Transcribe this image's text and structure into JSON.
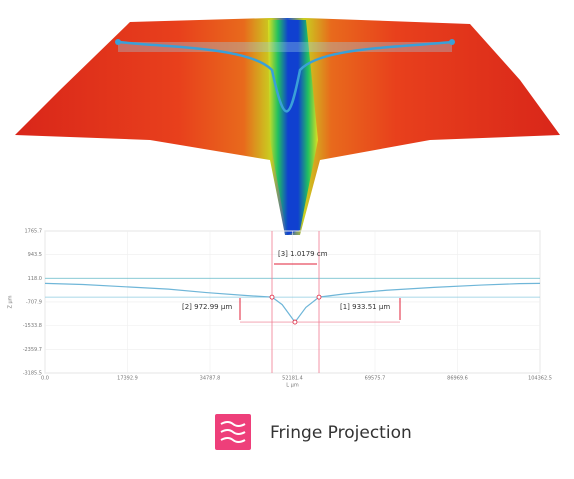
{
  "chart_data": {
    "type": "line",
    "x_label": "L μm",
    "y_label": "Z μm",
    "xlim": [
      0,
      104362.5
    ],
    "xticks": [
      {
        "value": 0,
        "label": "0.0"
      },
      17392.9,
      34787.8,
      52181.4,
      69575.7,
      86969.6,
      104362.5
    ],
    "ylim": [
      -3185.5,
      1765.7
    ],
    "yticks": [
      1765.7,
      943.5,
      {
        "value": 118,
        "label": "118.0"
      },
      -707.9,
      -1533.8,
      -2359.7,
      -3185.5
    ],
    "grid": true,
    "series": [
      {
        "color": "#6fb6d8",
        "x": [
          0,
          8000,
          17000,
          26000,
          34000,
          42000,
          47860,
          50000,
          52700,
          55000,
          57770,
          63000,
          72000,
          82000,
          92000,
          100000,
          104362.5
        ],
        "values": [
          -60,
          -100,
          -180,
          -260,
          -380,
          -480,
          -540,
          -800,
          -1410,
          -900,
          -540,
          -430,
          -300,
          -200,
          -120,
          -70,
          -60
        ]
      }
    ],
    "annotations": [
      "[3] 1.0179 cm",
      "[2] 972.99 μm",
      "[1] 933.51 μm"
    ]
  },
  "footer": {
    "title": "Fringe Projection"
  }
}
